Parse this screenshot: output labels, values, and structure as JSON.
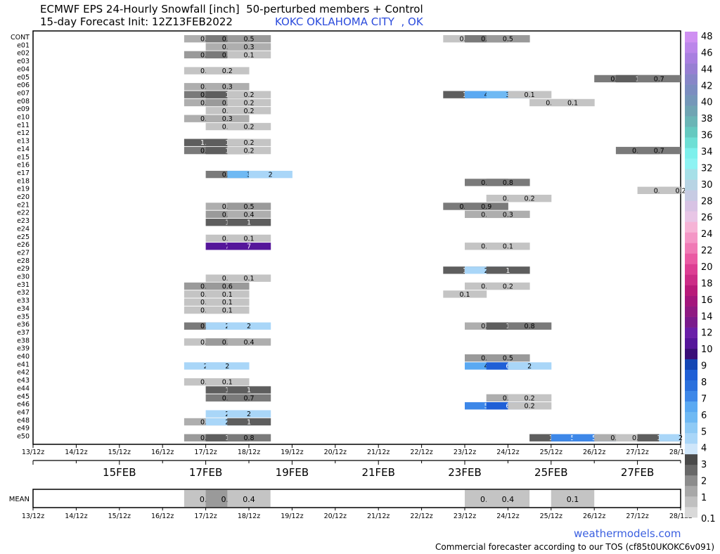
{
  "header": {
    "title_line1": "ECMWF EPS 24-Hourly Snowfall [inch]  50-perturbed members + Control",
    "title_line2": "15-day Forecast Init: 12Z13FEB2022",
    "location": "KOKC OKLAHOMA CITY  , OK"
  },
  "footer": {
    "brand": "weathermodels.com",
    "note": "Commercial forecaster according to our TOS (cf85t0UKOKC6v091)"
  },
  "colors": {
    "c01": "#d9d9d9",
    "c02": "#c0c0c0",
    "c05": "#a8a8a8",
    "c1": "#8c8c8c",
    "c15": "#686868",
    "c2": "#4a4a4a",
    "c3": "#8fcaf5",
    "c4": "#5aa9f2",
    "c5": "#3d87e8",
    "c6": "#1f5fd6",
    "c7": "#55169a"
  },
  "chart_data": {
    "type": "heatmap",
    "units": "inch",
    "rows": [
      "CONT",
      "e01",
      "e02",
      "e03",
      "e04",
      "e05",
      "e06",
      "e07",
      "e08",
      "e09",
      "e10",
      "e11",
      "e12",
      "e13",
      "e14",
      "e15",
      "e16",
      "e17",
      "e18",
      "e19",
      "e20",
      "e21",
      "e22",
      "e23",
      "e24",
      "e25",
      "e26",
      "e27",
      "e28",
      "e29",
      "e30",
      "e31",
      "e32",
      "e33",
      "e34",
      "e35",
      "e36",
      "e37",
      "e38",
      "e39",
      "e40",
      "e41",
      "e42",
      "e43",
      "e44",
      "e45",
      "e46",
      "e47",
      "e48",
      "e49",
      "e50"
    ],
    "x_ticks": [
      "13/12z",
      "14/12z",
      "15/12z",
      "16/12z",
      "17/12z",
      "18/12z",
      "19/12z",
      "20/12z",
      "21/12z",
      "22/12z",
      "23/12z",
      "24/12z",
      "25/12z",
      "26/12z",
      "27/12z",
      "28/12z"
    ],
    "date_labels": [
      "15FEB",
      "17FEB",
      "19FEB",
      "21FEB",
      "23FEB",
      "25FEB",
      "27FEB"
    ],
    "date_label_days": [
      15,
      17,
      19,
      21,
      23,
      25,
      27
    ],
    "colorbar_labels": [
      "0.1",
      "1",
      "2",
      "3",
      "4",
      "5",
      "6",
      "7",
      "8",
      "9",
      "10",
      "12",
      "14",
      "16",
      "18",
      "20",
      "22",
      "24",
      "26",
      "28",
      "30",
      "32",
      "34",
      "36",
      "38",
      "40",
      "42",
      "44",
      "46",
      "48"
    ],
    "colorbar_colors": [
      "#d9d9d9",
      "#c0c0c0",
      "#a8a8a8",
      "#8c8c8c",
      "#686868",
      "#4a4a4a",
      "#cfe6fa",
      "#a9d6f8",
      "#8fcaf5",
      "#6fb9f3",
      "#5aa9f2",
      "#3d87e8",
      "#2a70dd",
      "#1f5fd6",
      "#1446b4",
      "#3a0f78",
      "#55169a",
      "#6a1fa8",
      "#7a1b8c",
      "#8f1a82",
      "#a3167c",
      "#b81a79",
      "#cc2c86",
      "#dd3e93",
      "#ea5aa3",
      "#f07ab5",
      "#f497c6",
      "#f6b4d6",
      "#e8c6e6",
      "#d8c3e4",
      "#c7cbe3",
      "#b8d4e4",
      "#a7e0e8",
      "#8ef3f3",
      "#7df0ec",
      "#6edfd5",
      "#65c9c0",
      "#6ab5b6",
      "#6fa4b3",
      "#7497b9",
      "#7b8dc0",
      "#8786c8",
      "#977fd3",
      "#a87fe0",
      "#bb86ea",
      "#cf90f2"
    ],
    "mean": [
      {
        "day": 17.0,
        "v": 0.2
      },
      {
        "day": 17.5,
        "v": 0.6
      },
      {
        "day": 18.0,
        "v": 0.4
      },
      {
        "day": 23.5,
        "v": 0.4
      },
      {
        "day": 24.0,
        "v": 0.4
      },
      {
        "day": 25.5,
        "v": 0.1
      }
    ],
    "cells": [
      [
        "CONT",
        17.0,
        0.3
      ],
      [
        "CONT",
        17.5,
        0.8
      ],
      [
        "CONT",
        18.0,
        0.5
      ],
      [
        "CONT",
        23.0,
        0.1
      ],
      [
        "CONT",
        23.5,
        0.7
      ],
      [
        "CONT",
        24.0,
        0.5
      ],
      [
        "e01",
        17.5,
        0.3
      ],
      [
        "e01",
        18.0,
        0.3
      ],
      [
        "e02",
        17.0,
        0.6
      ],
      [
        "e02",
        17.5,
        0.7
      ],
      [
        "e02",
        18.0,
        0.1
      ],
      [
        "e04",
        17.0,
        0.1
      ],
      [
        "e04",
        17.5,
        0.2
      ],
      [
        "e05",
        26.5,
        0.8
      ],
      [
        "e05",
        27.0,
        1
      ],
      [
        "e05",
        27.5,
        0.7
      ],
      [
        "e06",
        17.0,
        0.3
      ],
      [
        "e06",
        17.5,
        0.3
      ],
      [
        "e07",
        17.0,
        0.9
      ],
      [
        "e07",
        17.5,
        1
      ],
      [
        "e07",
        18.0,
        0.2
      ],
      [
        "e07",
        23.0,
        1
      ],
      [
        "e07",
        23.5,
        4
      ],
      [
        "e07",
        24.0,
        3
      ],
      [
        "e07",
        24.5,
        0.1
      ],
      [
        "e08",
        17.0,
        0.3
      ],
      [
        "e08",
        17.5,
        0.5
      ],
      [
        "e08",
        18.0,
        0.2
      ],
      [
        "e08",
        25.0,
        0.1
      ],
      [
        "e08",
        25.5,
        0.1
      ],
      [
        "e09",
        17.5,
        0.2
      ],
      [
        "e09",
        18.0,
        0.2
      ],
      [
        "e10",
        17.0,
        0.3
      ],
      [
        "e10",
        17.5,
        0.3
      ],
      [
        "e11",
        17.5,
        0.1
      ],
      [
        "e11",
        18.0,
        0.2
      ],
      [
        "e13",
        17.0,
        1.0
      ],
      [
        "e13",
        17.5,
        1
      ],
      [
        "e13",
        18.0,
        0.2
      ],
      [
        "e14",
        17.0,
        0.8
      ],
      [
        "e14",
        17.5,
        1
      ],
      [
        "e14",
        18.0,
        0.2
      ],
      [
        "e14",
        27.0,
        0.7
      ],
      [
        "e14",
        27.5,
        0.7
      ],
      [
        "e17",
        17.5,
        0.8
      ],
      [
        "e17",
        18.0,
        3
      ],
      [
        "e17",
        18.5,
        2
      ],
      [
        "e18",
        23.5,
        0.9
      ],
      [
        "e18",
        24.0,
        0.8
      ],
      [
        "e19",
        27.5,
        0.2
      ],
      [
        "e19",
        28.0,
        0.2
      ],
      [
        "e20",
        24.0,
        0.2
      ],
      [
        "e20",
        24.5,
        0.2
      ],
      [
        "e21",
        17.5,
        0.4
      ],
      [
        "e21",
        18.0,
        0.5
      ],
      [
        "e21",
        23.0,
        0.9
      ],
      [
        "e21",
        23.5,
        0.9
      ],
      [
        "e22",
        17.5,
        0.5
      ],
      [
        "e22",
        18.0,
        0.4
      ],
      [
        "e22",
        23.5,
        0.3
      ],
      [
        "e22",
        24.0,
        0.3
      ],
      [
        "e23",
        17.5,
        1
      ],
      [
        "e23",
        18.0,
        1
      ],
      [
        "e25",
        17.5,
        0.2
      ],
      [
        "e25",
        18.0,
        0.1
      ],
      [
        "e26",
        17.5,
        7
      ],
      [
        "e26",
        18.0,
        7
      ],
      [
        "e26",
        23.5,
        0.1
      ],
      [
        "e26",
        24.0,
        0.1
      ],
      [
        "e29",
        23.0,
        1
      ],
      [
        "e29",
        23.5,
        2
      ],
      [
        "e29",
        24.0,
        1
      ],
      [
        "e30",
        17.5,
        0.2
      ],
      [
        "e30",
        18.0,
        0.1
      ],
      [
        "e31",
        17.0,
        0.5
      ],
      [
        "e31",
        17.5,
        0.6
      ],
      [
        "e31",
        23.5,
        0.2
      ],
      [
        "e31",
        24.0,
        0.2
      ],
      [
        "e32",
        17.0,
        0.1
      ],
      [
        "e32",
        17.5,
        0.1
      ],
      [
        "e32",
        23.0,
        0.1
      ],
      [
        "e33",
        17.0,
        0.1
      ],
      [
        "e33",
        17.5,
        0.1
      ],
      [
        "e34",
        17.0,
        0.1
      ],
      [
        "e34",
        17.5,
        0.1
      ],
      [
        "e36",
        17.0,
        0.7
      ],
      [
        "e36",
        17.5,
        2
      ],
      [
        "e36",
        18.0,
        2
      ],
      [
        "e36",
        23.5,
        0.3
      ],
      [
        "e36",
        24.0,
        1
      ],
      [
        "e36",
        24.5,
        0.8
      ],
      [
        "e38",
        17.0,
        0.2
      ],
      [
        "e38",
        17.5,
        0.5
      ],
      [
        "e38",
        18.0,
        0.4
      ],
      [
        "e40",
        23.5,
        0.5
      ],
      [
        "e40",
        24.0,
        0.5
      ],
      [
        "e41",
        17.0,
        2
      ],
      [
        "e41",
        17.5,
        2
      ],
      [
        "e41",
        23.5,
        4
      ],
      [
        "e41",
        24.0,
        6
      ],
      [
        "e41",
        24.5,
        2
      ],
      [
        "e43",
        17.0,
        0.1
      ],
      [
        "e43",
        17.5,
        0.1
      ],
      [
        "e44",
        17.5,
        1
      ],
      [
        "e44",
        18.0,
        1
      ],
      [
        "e45",
        17.5,
        0.7
      ],
      [
        "e45",
        18.0,
        0.7
      ],
      [
        "e45",
        24.0,
        0.3
      ],
      [
        "e45",
        24.5,
        0.2
      ],
      [
        "e46",
        23.5,
        5
      ],
      [
        "e46",
        24.0,
        6
      ],
      [
        "e46",
        24.5,
        0.2
      ],
      [
        "e47",
        17.5,
        2
      ],
      [
        "e47",
        18.0,
        2
      ],
      [
        "e48",
        17.0,
        0.4
      ],
      [
        "e48",
        17.5,
        2
      ],
      [
        "e48",
        18.0,
        1
      ],
      [
        "e50",
        17.0,
        0.5
      ],
      [
        "e50",
        17.5,
        1
      ],
      [
        "e50",
        18.0,
        0.8
      ],
      [
        "e50",
        25.0,
        1
      ],
      [
        "e50",
        25.5,
        5
      ],
      [
        "e50",
        26.0,
        5
      ],
      [
        "e50",
        26.5,
        0.4
      ],
      [
        "e50",
        27.0,
        0.2
      ],
      [
        "e50",
        27.5,
        1
      ],
      [
        "e50",
        28.0,
        2
      ]
    ]
  }
}
